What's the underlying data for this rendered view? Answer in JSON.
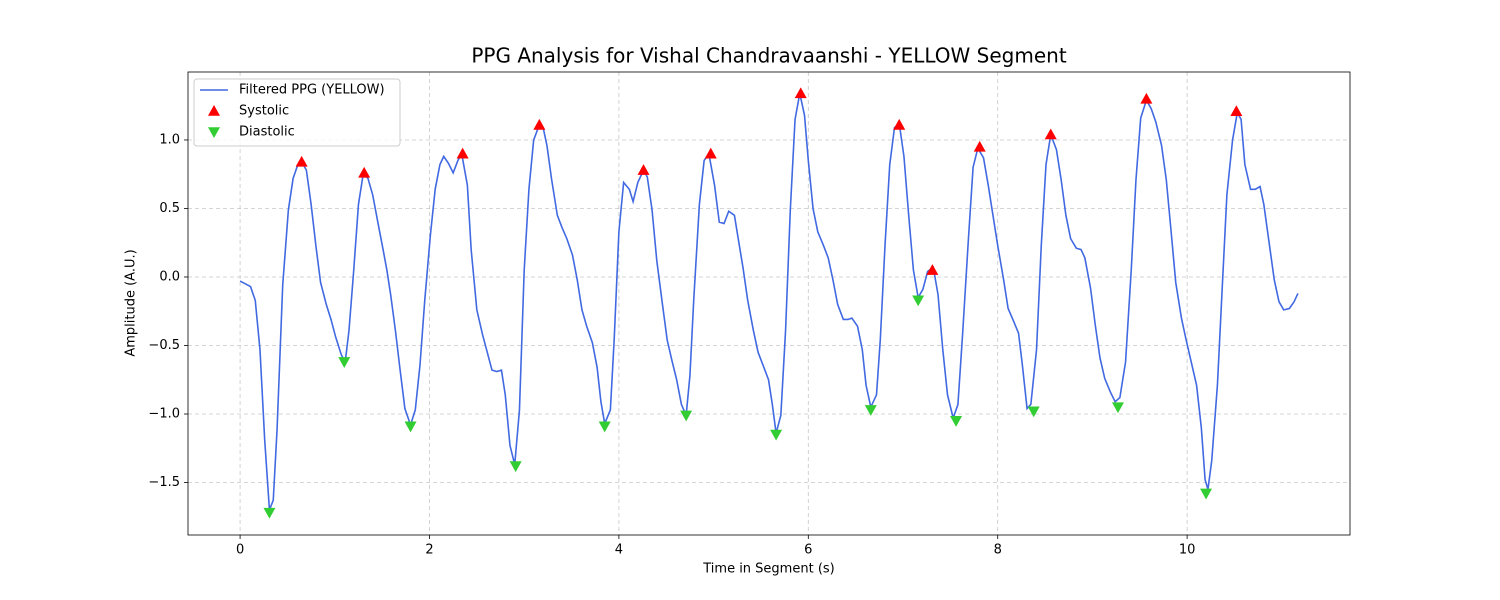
{
  "chart_data": {
    "type": "line",
    "title": "PPG Analysis for Vishal Chandravaanshi - YELLOW Segment",
    "xlabel": "Time in Segment (s)",
    "ylabel": "Amplitude (A.U.)",
    "xlim": [
      -0.55,
      11.72
    ],
    "ylim": [
      -1.883,
      1.496
    ],
    "xticks": [
      0,
      2,
      4,
      6,
      8,
      10
    ],
    "yticks": [
      {
        "value": -1.5,
        "label": "−1.5"
      },
      {
        "value": -1.0,
        "label": "−1.0"
      },
      {
        "value": -0.5,
        "label": "−0.5"
      },
      {
        "value": 0.0,
        "label": "0.0"
      },
      {
        "value": 0.5,
        "label": "0.5"
      },
      {
        "value": 1.0,
        "label": "1.0"
      }
    ],
    "grid": true,
    "legend": "upper left",
    "series": [
      {
        "name": "Filtered PPG (YELLOW)",
        "type": "line",
        "color": "#4169e1",
        "x": [
          0,
          0.11,
          0.16,
          0.21,
          0.26,
          0.31,
          0.35,
          0.39,
          0.45,
          0.51,
          0.56,
          0.61,
          0.65,
          0.7,
          0.75,
          0.8,
          0.85,
          0.91,
          0.96,
          1.01,
          1.07,
          1.11,
          1.15,
          1.2,
          1.25,
          1.3,
          1.35,
          1.4,
          1.46,
          1.51,
          1.55,
          1.59,
          1.64,
          1.69,
          1.74,
          1.8,
          1.85,
          1.9,
          1.95,
          2.01,
          2.06,
          2.11,
          2.15,
          2.2,
          2.25,
          2.3,
          2.34,
          2.4,
          2.44,
          2.5,
          2.56,
          2.61,
          2.66,
          2.71,
          2.76,
          2.8,
          2.85,
          2.9,
          2.95,
          3.0,
          3.05,
          3.1,
          3.16,
          3.2,
          3.24,
          3.29,
          3.35,
          3.4,
          3.45,
          3.51,
          3.56,
          3.61,
          3.66,
          3.72,
          3.77,
          3.81,
          3.85,
          3.91,
          3.95,
          4.0,
          4.05,
          4.11,
          4.15,
          4.2,
          4.26,
          4.3,
          4.35,
          4.4,
          4.46,
          4.51,
          4.56,
          4.61,
          4.66,
          4.71,
          4.75,
          4.79,
          4.85,
          4.9,
          4.95,
          5.01,
          5.06,
          5.11,
          5.16,
          5.22,
          5.26,
          5.31,
          5.36,
          5.42,
          5.47,
          5.52,
          5.58,
          5.62,
          5.66,
          5.71,
          5.76,
          5.81,
          5.86,
          5.91,
          5.96,
          6.0,
          6.05,
          6.1,
          6.16,
          6.21,
          6.26,
          6.31,
          6.37,
          6.42,
          6.46,
          6.52,
          6.57,
          6.61,
          6.66,
          6.72,
          6.76,
          6.81,
          6.86,
          6.91,
          6.96,
          7.01,
          7.06,
          7.11,
          7.16,
          7.21,
          7.26,
          7.32,
          7.37,
          7.42,
          7.47,
          7.53,
          7.58,
          7.63,
          7.69,
          7.74,
          7.79,
          7.85,
          7.9,
          7.95,
          8.0,
          8.06,
          8.11,
          8.16,
          8.22,
          8.26,
          8.31,
          8.35,
          8.41,
          8.46,
          8.51,
          8.56,
          8.62,
          8.67,
          8.72,
          8.77,
          8.83,
          8.88,
          8.92,
          8.98,
          9.03,
          9.08,
          9.13,
          9.19,
          9.24,
          9.29,
          9.35,
          9.41,
          9.46,
          9.51,
          9.57,
          9.62,
          9.67,
          9.73,
          9.78,
          9.83,
          9.88,
          9.94,
          9.99,
          10.04,
          10.1,
          10.15,
          10.19,
          10.22,
          10.26,
          10.32,
          10.37,
          10.42,
          10.48,
          10.53,
          10.57,
          10.61,
          10.67,
          10.72,
          10.77,
          10.81,
          10.87,
          10.92,
          10.97,
          11.02,
          11.08,
          11.13,
          11.17
        ],
        "values": [
          -0.03,
          -0.07,
          -0.17,
          -0.53,
          -1.19,
          -1.7,
          -1.63,
          -1.12,
          -0.06,
          0.49,
          0.72,
          0.82,
          0.84,
          0.78,
          0.53,
          0.23,
          -0.04,
          -0.2,
          -0.31,
          -0.44,
          -0.57,
          -0.62,
          -0.39,
          0.05,
          0.53,
          0.75,
          0.72,
          0.6,
          0.38,
          0.2,
          0.05,
          -0.13,
          -0.39,
          -0.68,
          -0.96,
          -1.08,
          -0.97,
          -0.64,
          -0.17,
          0.31,
          0.64,
          0.82,
          0.88,
          0.83,
          0.76,
          0.85,
          0.9,
          0.67,
          0.2,
          -0.24,
          -0.42,
          -0.55,
          -0.68,
          -0.69,
          -0.68,
          -0.86,
          -1.23,
          -1.37,
          -0.97,
          0.05,
          0.64,
          1.0,
          1.11,
          1.09,
          0.96,
          0.71,
          0.45,
          0.36,
          0.28,
          0.16,
          -0.02,
          -0.24,
          -0.36,
          -0.48,
          -0.66,
          -0.91,
          -1.07,
          -0.97,
          -0.46,
          0.33,
          0.69,
          0.64,
          0.55,
          0.69,
          0.78,
          0.73,
          0.49,
          0.12,
          -0.2,
          -0.46,
          -0.61,
          -0.75,
          -0.93,
          -1.01,
          -0.72,
          -0.17,
          0.53,
          0.85,
          0.9,
          0.67,
          0.4,
          0.39,
          0.48,
          0.45,
          0.28,
          0.07,
          -0.17,
          -0.39,
          -0.55,
          -0.64,
          -0.75,
          -0.93,
          -1.14,
          -1.01,
          -0.39,
          0.49,
          1.15,
          1.34,
          1.18,
          0.85,
          0.5,
          0.33,
          0.23,
          0.14,
          -0.02,
          -0.2,
          -0.31,
          -0.31,
          -0.3,
          -0.36,
          -0.53,
          -0.79,
          -0.95,
          -0.86,
          -0.46,
          0.23,
          0.82,
          1.09,
          1.12,
          0.88,
          0.45,
          0.05,
          -0.15,
          -0.09,
          0.04,
          0.07,
          -0.13,
          -0.53,
          -0.86,
          -1.03,
          -0.93,
          -0.41,
          0.27,
          0.8,
          0.94,
          0.87,
          0.67,
          0.45,
          0.23,
          -0.01,
          -0.23,
          -0.31,
          -0.41,
          -0.64,
          -0.96,
          -0.93,
          -0.53,
          0.23,
          0.82,
          1.04,
          0.93,
          0.71,
          0.45,
          0.28,
          0.21,
          0.2,
          0.14,
          -0.08,
          -0.35,
          -0.59,
          -0.74,
          -0.84,
          -0.91,
          -0.88,
          -0.62,
          0.05,
          0.71,
          1.16,
          1.29,
          1.23,
          1.13,
          0.96,
          0.71,
          0.34,
          -0.04,
          -0.3,
          -0.46,
          -0.61,
          -0.79,
          -1.1,
          -1.48,
          -1.55,
          -1.34,
          -0.79,
          -0.09,
          0.6,
          1.0,
          1.2,
          1.15,
          0.82,
          0.64,
          0.64,
          0.66,
          0.53,
          0.23,
          -0.02,
          -0.18,
          -0.24,
          -0.23,
          -0.18,
          -0.12
        ]
      },
      {
        "name": "Systolic",
        "type": "scatter",
        "marker": "triangle-up",
        "color": "#ff0000",
        "x": [
          0.65,
          1.31,
          2.35,
          3.16,
          4.26,
          4.97,
          5.92,
          6.96,
          7.31,
          7.81,
          8.56,
          9.57,
          10.52
        ],
        "values": [
          0.84,
          0.76,
          0.9,
          1.11,
          0.78,
          0.9,
          1.34,
          1.11,
          0.05,
          0.95,
          1.04,
          1.3,
          1.21
        ]
      },
      {
        "name": "Diastolic",
        "type": "scatter",
        "marker": "triangle-down",
        "color": "#32cd32",
        "x": [
          0.31,
          1.1,
          1.8,
          2.91,
          3.85,
          4.71,
          5.66,
          6.66,
          7.16,
          7.56,
          8.38,
          9.27,
          10.2
        ],
        "values": [
          -1.72,
          -0.62,
          -1.09,
          -1.38,
          -1.09,
          -1.01,
          -1.15,
          -0.97,
          -0.17,
          -1.05,
          -0.98,
          -0.95,
          -1.58
        ]
      }
    ]
  }
}
